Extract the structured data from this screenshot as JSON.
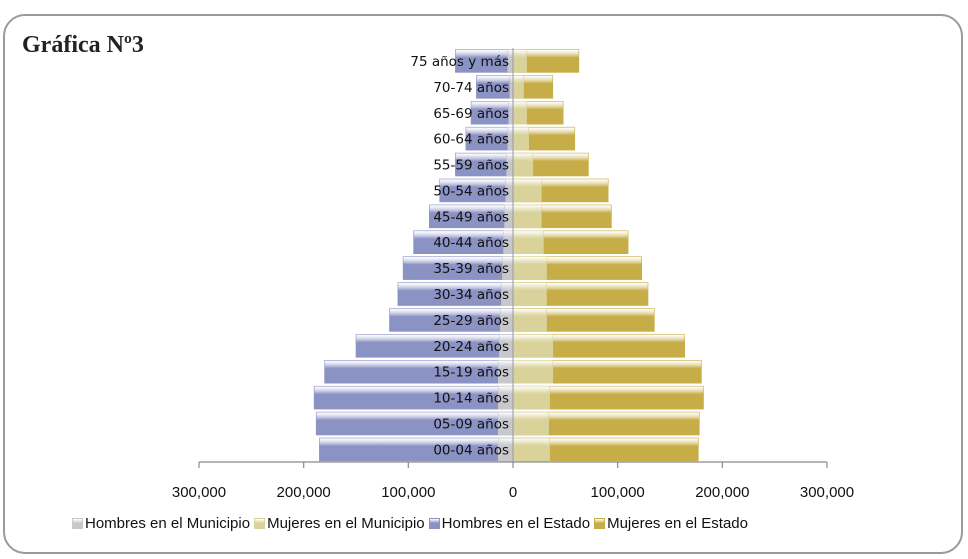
{
  "title": "Gráfica Nº3",
  "chart_data": {
    "type": "bar",
    "orientation": "horizontal",
    "subtype": "population-pyramid",
    "categories": [
      "00-04 años",
      "05-09 años",
      "10-14 años",
      "15-19 años",
      "20-24 años",
      "25-29 años",
      "30-34 años",
      "35-39 años",
      "40-44 años",
      "45-49 años",
      "50-54 años",
      "55-59 años",
      "60-64 años",
      "65-69 años",
      "70-74 años",
      "75 años y más"
    ],
    "series": [
      {
        "name": "Hombres en el Municipio",
        "color": "#c8c8cc",
        "side": "left",
        "values": [
          14000,
          14000,
          14000,
          14000,
          13000,
          12000,
          11000,
          10000,
          9000,
          8000,
          7000,
          6000,
          5000,
          4000,
          3000,
          5000
        ]
      },
      {
        "name": "Mujeres en el Municipio",
        "color": "#d9d39b",
        "side": "right",
        "values": [
          35000,
          34000,
          35000,
          38000,
          38000,
          32000,
          32000,
          32000,
          29000,
          27000,
          27000,
          19000,
          15000,
          13000,
          10000,
          13000
        ]
      },
      {
        "name": "Hombres en el Estado",
        "color": "#8b92c4",
        "side": "left",
        "values": [
          185000,
          188000,
          190000,
          180000,
          150000,
          118000,
          110000,
          105000,
          95000,
          80000,
          70000,
          55000,
          45000,
          40000,
          35000,
          55000
        ]
      },
      {
        "name": "Mujeres en el Estado",
        "color": "#c6ad48",
        "side": "right",
        "values": [
          177000,
          178000,
          182000,
          180000,
          164000,
          135000,
          129000,
          123000,
          110000,
          94000,
          91000,
          72000,
          59000,
          48000,
          38000,
          63000
        ]
      }
    ],
    "xlim": [
      -300000,
      300000
    ],
    "tick_labels": [
      "300,000",
      "200,000",
      "100,000",
      "0",
      "100,000",
      "200,000",
      "300,000"
    ],
    "grid": false,
    "legend_position": "bottom"
  }
}
